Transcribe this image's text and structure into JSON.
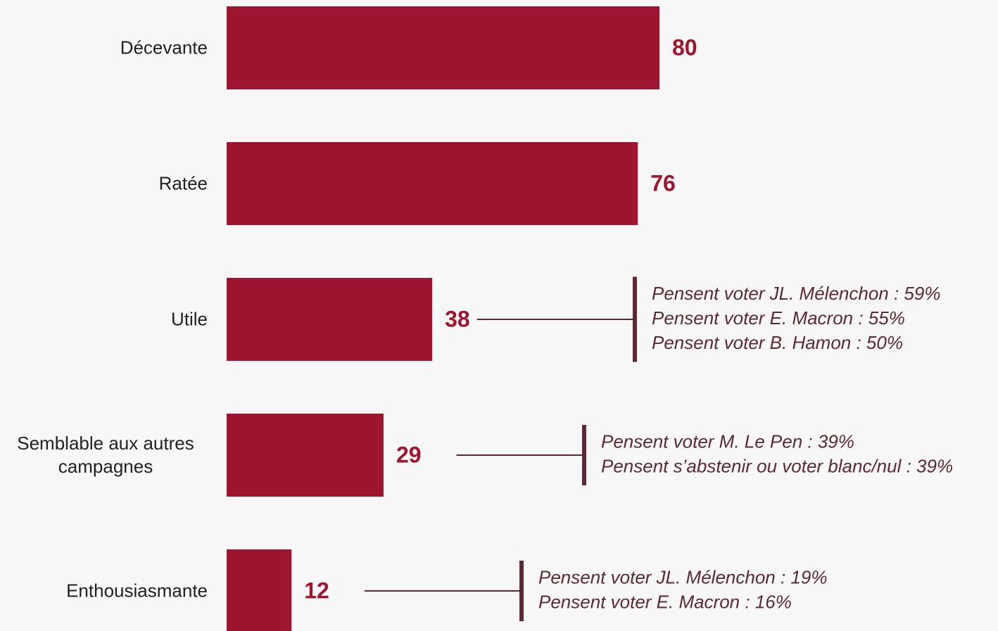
{
  "chart_data": {
    "type": "bar",
    "orientation": "horizontal",
    "color": "#9e1530",
    "categories": [
      "Décevante",
      "Ratée",
      "Utile",
      "Semblable aux autres campagnes",
      "Enthousiasmante"
    ],
    "values": [
      80,
      76,
      38,
      29,
      12
    ],
    "annotations": [
      null,
      null,
      [
        "Pensent voter JL. Mélenchon : 59%",
        "Pensent voter E. Macron : 55%",
        "Pensent voter B. Hamon : 50%"
      ],
      [
        "Pensent voter M. Le Pen : 39%",
        "Pensent s’abstenir ou voter blanc/nul : 39%"
      ],
      [
        "Pensent voter JL. Mélenchon : 19%",
        "Pensent voter E. Macron : 16%"
      ]
    ]
  }
}
